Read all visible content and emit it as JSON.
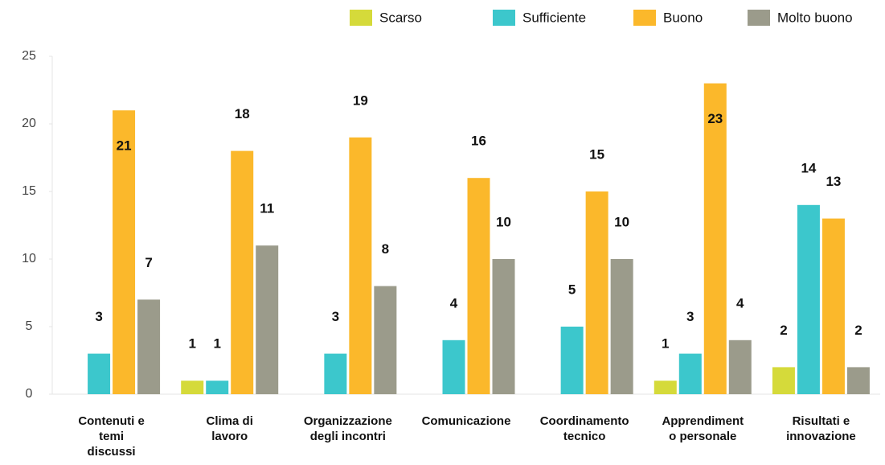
{
  "chart_data": {
    "type": "bar",
    "categories": [
      "Contenuti e\ntemi\ndiscussi",
      "Clima di\nlavoro",
      "Organizzazione\ndegli incontri",
      "Comunicazione",
      "Coordinamento\ntecnico",
      "Apprendiment\no personale",
      "Risultati e\ninnovazione"
    ],
    "series": [
      {
        "name": "Scarso",
        "color": "#d5da3a",
        "values": [
          null,
          1,
          null,
          null,
          null,
          1,
          2
        ]
      },
      {
        "name": "Sufficiente",
        "color": "#3cc7cc",
        "values": [
          3,
          1,
          3,
          4,
          5,
          3,
          14
        ]
      },
      {
        "name": "Buono",
        "color": "#fbb82b",
        "values": [
          21,
          18,
          19,
          16,
          15,
          23,
          13
        ]
      },
      {
        "name": "Molto buono",
        "color": "#9b9b8b",
        "values": [
          7,
          11,
          8,
          10,
          10,
          4,
          2
        ]
      }
    ],
    "ylim": [
      0,
      25
    ],
    "yticks": [
      0,
      5,
      10,
      15,
      20,
      25
    ],
    "legend": "top-right"
  }
}
